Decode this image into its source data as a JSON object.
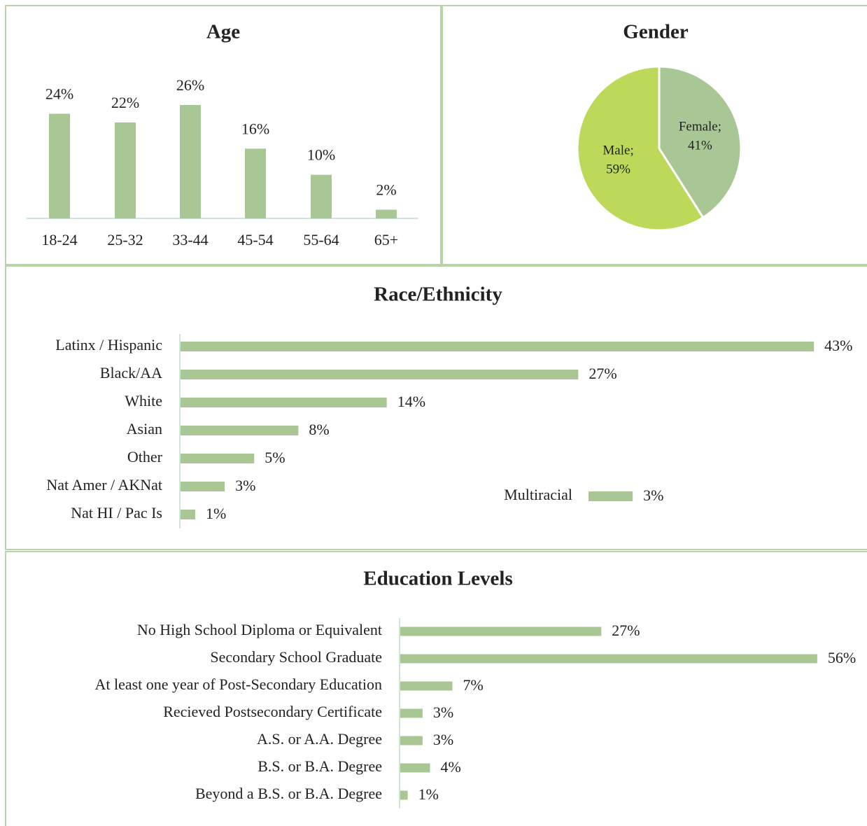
{
  "chart_data": [
    {
      "type": "bar",
      "title": "Age",
      "categories": [
        "18-24",
        "25-32",
        "33-44",
        "45-54",
        "55-64",
        "65+"
      ],
      "values": [
        24,
        22,
        26,
        16,
        10,
        2
      ],
      "value_labels": [
        "24%",
        "22%",
        "26%",
        "16%",
        "10%",
        "2%"
      ],
      "color": "#a9c795"
    },
    {
      "type": "pie",
      "title": "Gender",
      "categories": [
        "Female;",
        "Male;"
      ],
      "values": [
        41,
        59
      ],
      "value_labels": [
        "41%",
        "59%"
      ],
      "colors": [
        "#a9c795",
        "#bcd95a"
      ]
    },
    {
      "type": "hbar",
      "title": "Race/Ethnicity",
      "categories": [
        "Latinx / Hispanic",
        "Black/AA",
        "White",
        "Asian",
        "Other",
        "Nat Amer / AKNat",
        "Nat HI / Pac Is",
        "Multiracial"
      ],
      "values": [
        43,
        27,
        14,
        8,
        5,
        3,
        1,
        3
      ],
      "value_labels": [
        "43%",
        "27%",
        "14%",
        "8%",
        "5%",
        "3%",
        "1%",
        "3%"
      ],
      "color": "#a9c795"
    },
    {
      "type": "hbar",
      "title": "Education Levels",
      "categories": [
        "No High School Diploma or Equivalent",
        "Secondary School Graduate",
        "At least one year of Post-Secondary Education",
        "Recieved Postsecondary Certificate",
        "A.S. or A.A. Degree",
        "B.S. or B.A. Degree",
        "Beyond a B.S. or B.A. Degree"
      ],
      "values": [
        27,
        56,
        7,
        3,
        3,
        4,
        1
      ],
      "value_labels": [
        "27%",
        "56%",
        "7%",
        "3%",
        "3%",
        "4%",
        "1%"
      ],
      "color": "#a9c795"
    }
  ]
}
